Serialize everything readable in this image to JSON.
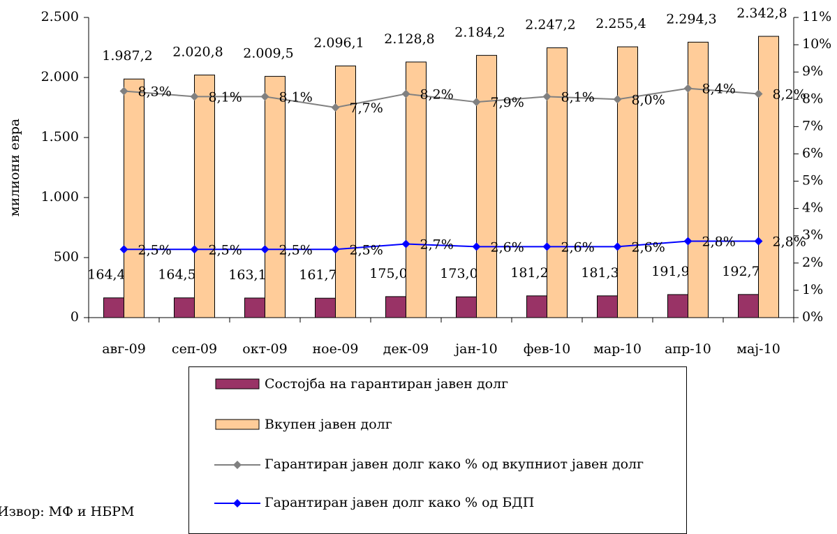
{
  "chart_data": {
    "type": "bar-line",
    "y_label": "милиони евра",
    "source": "Извор: МФ и НБРМ",
    "categories": [
      "авг-09",
      "сеп-09",
      "окт-09",
      "ное-09",
      "дек-09",
      "јан-10",
      "фев-10",
      "мар-10",
      "апр-10",
      "мај-10"
    ],
    "series": [
      {
        "name": "Состојба на гарантиран јавен долг",
        "kind": "bar",
        "color": "#993366",
        "values": [
          164.4,
          164.5,
          163.1,
          161.7,
          175.0,
          173.0,
          181.2,
          181.3,
          191.9,
          192.7
        ],
        "value_labels": [
          "164,4",
          "164,5",
          "163,1",
          "161,7",
          "175,0",
          "173,0",
          "181,2",
          "181,3",
          "191,9",
          "192,7"
        ]
      },
      {
        "name": "Вкупен јавен долг",
        "kind": "bar",
        "color": "#FFCC99",
        "values": [
          1987.2,
          2020.8,
          2009.5,
          2096.1,
          2128.8,
          2184.2,
          2247.2,
          2255.4,
          2294.3,
          2342.8
        ],
        "value_labels": [
          "1.987,2",
          "2.020,8",
          "2.009,5",
          "2.096,1",
          "2.128,8",
          "2.184,2",
          "2.247,2",
          "2.255,4",
          "2.294,3",
          "2.342,8"
        ]
      },
      {
        "name": "Гарантиран јавен долг како % од вкупниот јавен долг",
        "kind": "line",
        "axis": "y2",
        "color": "#808080",
        "values": [
          8.3,
          8.1,
          8.1,
          7.7,
          8.2,
          7.9,
          8.1,
          8.0,
          8.4,
          8.2
        ],
        "value_labels": [
          "8,3%",
          "8,1%",
          "8,1%",
          "7,7%",
          "8,2%",
          "7,9%",
          "8,1%",
          "8,0%",
          "8,4%",
          "8,2%"
        ]
      },
      {
        "name": "Гарантиран јавен долг како % од БДП",
        "kind": "line",
        "axis": "y2",
        "color": "#0000FF",
        "values": [
          2.5,
          2.5,
          2.5,
          2.5,
          2.7,
          2.6,
          2.6,
          2.6,
          2.8,
          2.8
        ],
        "value_labels": [
          "2,5%",
          "2,5%",
          "2,5%",
          "2,5%",
          "2,7%",
          "2,6%",
          "2,6%",
          "2,6%",
          "2,8%",
          "2,8%"
        ]
      }
    ],
    "ylim": [
      0,
      2500
    ],
    "yticks": [
      0,
      500,
      {
        "value": 1000,
        "label": "1.000"
      },
      {
        "value": 1500,
        "label": "1.500"
      },
      {
        "value": 2000,
        "label": "2.000"
      },
      {
        "value": 2500,
        "label": "2.500"
      }
    ],
    "y2lim": [
      0,
      11
    ],
    "y2ticks": [
      {
        "value": 0,
        "label": "0%"
      },
      {
        "value": 1,
        "label": "1%"
      },
      {
        "value": 2,
        "label": "2%"
      },
      {
        "value": 3,
        "label": "3%"
      },
      {
        "value": 4,
        "label": "4%"
      },
      {
        "value": 5,
        "label": "5%"
      },
      {
        "value": 6,
        "label": "6%"
      },
      {
        "value": 7,
        "label": "7%"
      },
      {
        "value": 8,
        "label": "8%"
      },
      {
        "value": 9,
        "label": "9%"
      },
      {
        "value": 10,
        "label": "10%"
      },
      {
        "value": 11,
        "label": "11%"
      }
    ]
  }
}
